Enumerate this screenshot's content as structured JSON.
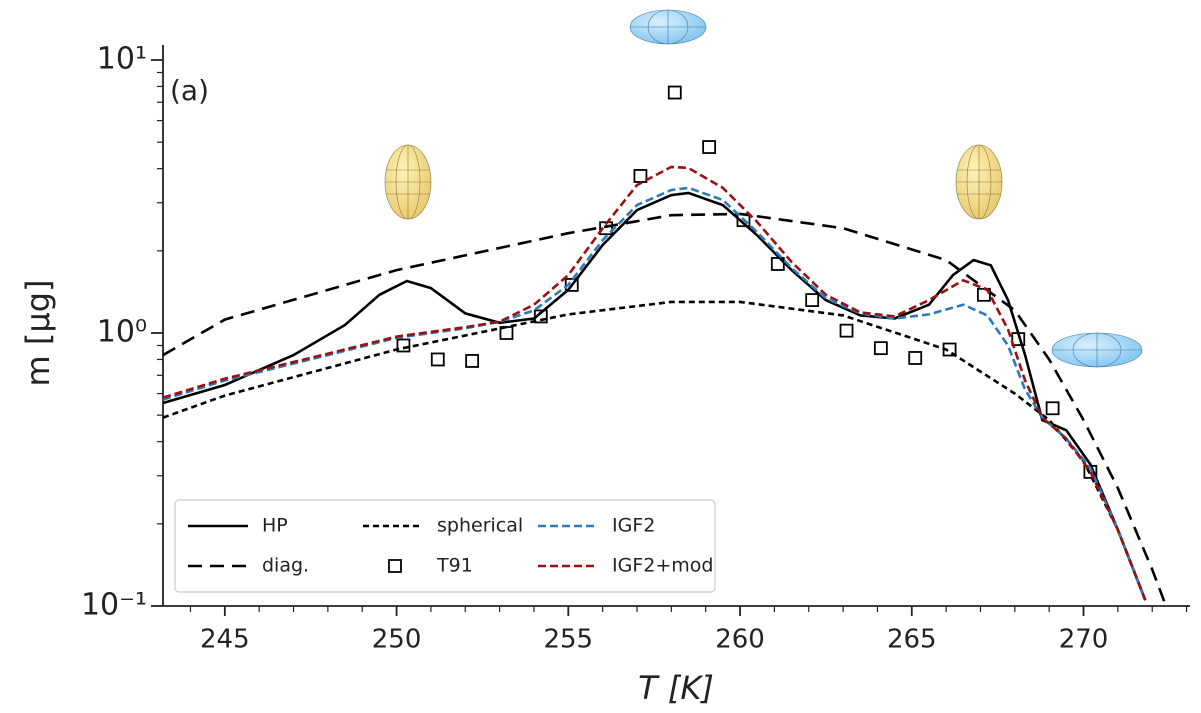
{
  "chart_data": {
    "type": "line",
    "annotation": "(a)",
    "x_label": "T [K]",
    "y_label": "m [μg]",
    "xlim": [
      243.2,
      273.1
    ],
    "xticks": [
      245,
      250,
      255,
      260,
      265,
      270
    ],
    "xminorticks": [
      244,
      246,
      247,
      248,
      249,
      251,
      252,
      253,
      254,
      256,
      257,
      258,
      259,
      261,
      262,
      263,
      264,
      266,
      267,
      268,
      269,
      271,
      272,
      273
    ],
    "ylim": [
      0.1,
      11
    ],
    "y_log": true,
    "yticks": [
      {
        "value": 0.1,
        "label": "10⁻¹"
      },
      {
        "value": 1,
        "label": "10⁰"
      },
      {
        "value": 10,
        "label": "10¹"
      }
    ],
    "yminorticks": [
      0.2,
      0.3,
      0.4,
      0.5,
      0.6,
      0.7,
      0.8,
      0.9,
      2,
      3,
      4,
      5,
      6,
      7,
      8,
      9
    ],
    "grid": false,
    "legend": "lower left",
    "series": [
      {
        "name": "HP",
        "color": "#000000",
        "dash": "solid",
        "x": [
          243.2,
          245,
          247,
          248.5,
          249.5,
          250.3,
          251,
          252,
          253,
          254,
          255,
          256,
          257,
          258,
          258.5,
          259.5,
          260.5,
          261.5,
          262.5,
          263.5,
          264.5,
          265.5,
          266.2,
          266.8,
          267.3,
          267.8,
          268.3,
          268.8,
          269.5,
          270.2,
          271,
          271.8
        ],
        "values": [
          0.554,
          0.645,
          0.83,
          1.07,
          1.38,
          1.55,
          1.46,
          1.18,
          1.09,
          1.13,
          1.44,
          2.1,
          2.82,
          3.2,
          3.26,
          2.94,
          2.28,
          1.7,
          1.32,
          1.16,
          1.13,
          1.27,
          1.63,
          1.85,
          1.77,
          1.32,
          0.83,
          0.48,
          0.44,
          0.33,
          0.19,
          0.105
        ]
      },
      {
        "name": "diag.",
        "color": "#000000",
        "dash": "long",
        "x": [
          243.2,
          245,
          250,
          255,
          258,
          260,
          263,
          266,
          268,
          269,
          270,
          271,
          272,
          272.4
        ],
        "values": [
          0.83,
          1.12,
          1.7,
          2.32,
          2.7,
          2.73,
          2.42,
          1.85,
          1.21,
          0.8,
          0.48,
          0.27,
          0.136,
          0.1
        ]
      },
      {
        "name": "spherical",
        "color": "#000000",
        "dash": "short",
        "x": [
          243.2,
          245,
          250,
          255,
          258,
          260,
          263,
          266,
          268,
          269,
          270,
          271,
          271.8
        ],
        "values": [
          0.49,
          0.59,
          0.87,
          1.17,
          1.3,
          1.3,
          1.16,
          0.87,
          0.6,
          0.48,
          0.34,
          0.19,
          0.105
        ]
      },
      {
        "name": "T91",
        "color": "#000000",
        "marker": "square",
        "x": [
          250.2,
          251.2,
          252.2,
          253.2,
          254.2,
          255.1,
          256.1,
          257.1,
          258.1,
          259.1,
          260.1,
          261.1,
          262.1,
          263.1,
          264.1,
          265.1,
          266.1,
          267.1,
          268.1,
          269.1,
          270.2
        ],
        "values": [
          0.9,
          0.8,
          0.79,
          1.0,
          1.15,
          1.5,
          2.42,
          3.76,
          7.6,
          4.8,
          2.59,
          1.79,
          1.32,
          1.02,
          0.88,
          0.81,
          0.87,
          1.38,
          0.95,
          0.53,
          0.31
        ]
      },
      {
        "name": "IGF2",
        "color": "#2b7bba",
        "dash": "medium",
        "x": [
          243.2,
          245,
          248,
          250,
          252,
          253,
          254,
          255,
          256,
          257,
          258,
          258.5,
          259.5,
          260.5,
          261.5,
          262.5,
          263.5,
          264.5,
          265.5,
          266.5,
          267.2,
          267.8,
          268.3,
          268.8,
          269.5,
          270.2,
          271,
          271.8
        ],
        "values": [
          0.57,
          0.67,
          0.83,
          0.96,
          1.04,
          1.1,
          1.21,
          1.5,
          2.19,
          2.94,
          3.34,
          3.4,
          3.07,
          2.34,
          1.73,
          1.34,
          1.18,
          1.13,
          1.17,
          1.27,
          1.16,
          0.9,
          0.62,
          0.49,
          0.41,
          0.32,
          0.19,
          0.105
        ]
      },
      {
        "name": "IGF2+mod",
        "color": "#9b1010",
        "dash": "medium",
        "x": [
          243.2,
          245,
          248,
          250,
          252,
          253,
          254,
          255,
          256,
          257,
          258,
          258.5,
          259.5,
          260.5,
          261.5,
          262.5,
          263.5,
          264.5,
          265.5,
          266.5,
          267.2,
          267.8,
          268.3,
          268.8,
          269.5,
          270.2,
          271,
          271.8
        ],
        "values": [
          0.58,
          0.68,
          0.84,
          0.97,
          1.05,
          1.1,
          1.27,
          1.63,
          2.42,
          3.48,
          4.06,
          4.02,
          3.4,
          2.55,
          1.82,
          1.38,
          1.19,
          1.15,
          1.32,
          1.56,
          1.44,
          1.03,
          0.67,
          0.49,
          0.41,
          0.31,
          0.19,
          0.105
        ]
      }
    ]
  }
}
